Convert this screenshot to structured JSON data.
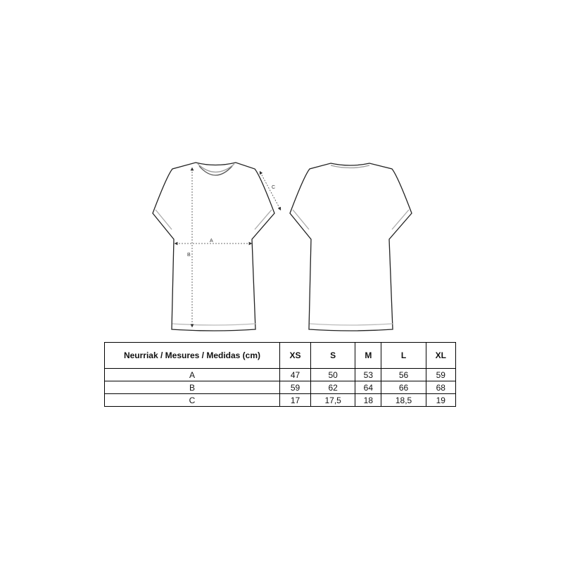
{
  "diagram": {
    "front_labels": {
      "a": "A",
      "b": "B",
      "c": "C"
    }
  },
  "table": {
    "header": "Neurriak / Mesures / Medidas (cm)",
    "sizes": [
      "XS",
      "S",
      "M",
      "L",
      "XL"
    ],
    "rows": [
      {
        "label": "A",
        "values": [
          "47",
          "50",
          "53",
          "56",
          "59"
        ]
      },
      {
        "label": "B",
        "values": [
          "59",
          "62",
          "64",
          "66",
          "68"
        ]
      },
      {
        "label": "C",
        "values": [
          "17",
          "17,5",
          "18",
          "18,5",
          "19"
        ]
      }
    ]
  }
}
